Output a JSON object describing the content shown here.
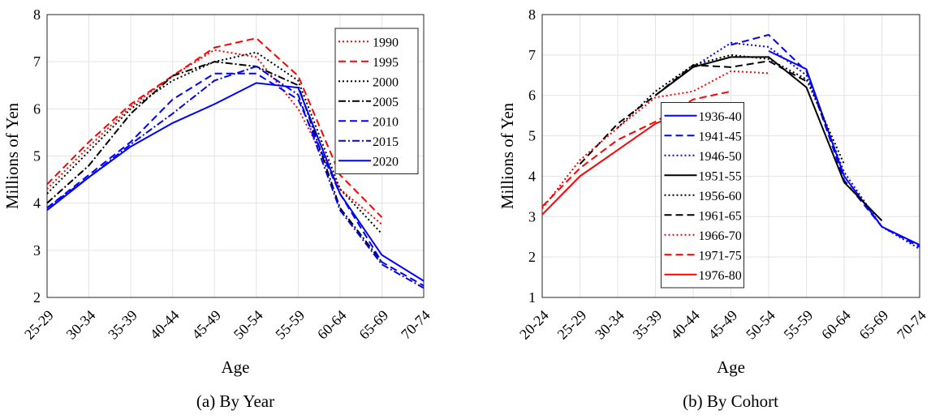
{
  "chart_data": [
    {
      "type": "line",
      "caption": "(a) By Year",
      "xlabel": "Age",
      "ylabel": "Millions of Yen",
      "categories": [
        "25-29",
        "30-34",
        "35-39",
        "40-44",
        "45-49",
        "50-54",
        "55-59",
        "60-64",
        "65-69",
        "70-74"
      ],
      "ylim": [
        2,
        8
      ],
      "yticks": [
        2,
        3,
        4,
        5,
        6,
        7,
        8
      ],
      "grid": true,
      "legend": "top-right",
      "series": [
        {
          "name": "1990",
          "color": "#ff0000",
          "dash": "dotted",
          "values": [
            4.3,
            5.2,
            6.05,
            6.7,
            7.25,
            7.1,
            6.0,
            4.3,
            3.55,
            null
          ]
        },
        {
          "name": "1995",
          "color": "#ff0000",
          "dash": "dashed",
          "values": [
            4.4,
            5.3,
            6.1,
            6.7,
            7.3,
            7.5,
            6.7,
            4.6,
            3.7,
            null
          ]
        },
        {
          "name": "2000",
          "color": "#000000",
          "dash": "dotted",
          "values": [
            4.2,
            5.1,
            6.0,
            6.6,
            7.0,
            7.2,
            6.6,
            4.3,
            3.35,
            null
          ]
        },
        {
          "name": "2005",
          "color": "#000000",
          "dash": "dashdot",
          "values": [
            4.0,
            4.8,
            5.9,
            6.7,
            7.0,
            6.9,
            6.5,
            3.9,
            2.75,
            null
          ]
        },
        {
          "name": "2010",
          "color": "#0000ff",
          "dash": "dashed",
          "values": [
            3.9,
            4.6,
            5.3,
            6.2,
            6.75,
            6.75,
            6.2,
            4.2,
            2.75,
            2.25
          ]
        },
        {
          "name": "2015",
          "color": "#0000ff",
          "dash": "dashdot",
          "values": [
            3.9,
            4.55,
            5.25,
            5.9,
            6.6,
            6.9,
            6.3,
            3.85,
            2.7,
            2.2
          ]
        },
        {
          "name": "2020",
          "color": "#0000ff",
          "dash": "solid",
          "values": [
            3.85,
            4.55,
            5.2,
            5.7,
            6.1,
            6.55,
            6.45,
            4.2,
            2.9,
            2.35
          ]
        }
      ]
    },
    {
      "type": "line",
      "caption": "(b) By Cohort",
      "xlabel": "Age",
      "ylabel": "Millions of Yen",
      "categories": [
        "20-24",
        "25-29",
        "30-34",
        "35-39",
        "40-44",
        "45-49",
        "50-54",
        "55-59",
        "60-64",
        "65-69",
        "70-74"
      ],
      "ylim": [
        1,
        8
      ],
      "yticks": [
        1,
        2,
        3,
        4,
        5,
        6,
        7,
        8
      ],
      "grid": true,
      "legend": "bottom-center",
      "series": [
        {
          "name": "1936-40",
          "color": "#0000ff",
          "dash": "solid",
          "values": [
            null,
            null,
            null,
            null,
            null,
            null,
            7.1,
            6.65,
            4.0,
            2.75,
            2.3
          ]
        },
        {
          "name": "1941-45",
          "color": "#0000ff",
          "dash": "dashed",
          "values": [
            null,
            null,
            null,
            null,
            null,
            7.25,
            7.5,
            6.6,
            3.9,
            2.75,
            2.25
          ]
        },
        {
          "name": "1946-50",
          "color": "#0000ff",
          "dash": "dotted",
          "values": [
            null,
            null,
            null,
            null,
            6.7,
            7.3,
            7.2,
            6.5,
            4.1,
            2.75,
            2.2
          ]
        },
        {
          "name": "1951-55",
          "color": "#000000",
          "dash": "solid",
          "values": [
            null,
            null,
            null,
            6.0,
            6.7,
            6.95,
            6.95,
            6.2,
            3.85,
            2.9,
            null
          ]
        },
        {
          "name": "1956-60",
          "color": "#000000",
          "dash": "dotted",
          "values": [
            null,
            null,
            5.2,
            6.1,
            6.75,
            7.0,
            6.9,
            6.4,
            4.3,
            null,
            null
          ]
        },
        {
          "name": "1961-65",
          "color": "#000000",
          "dash": "dashed",
          "values": [
            null,
            4.3,
            5.3,
            6.0,
            6.75,
            6.7,
            6.85,
            6.35,
            null,
            null,
            null
          ]
        },
        {
          "name": "1966-70",
          "color": "#ff0000",
          "dash": "dotted",
          "values": [
            3.2,
            4.4,
            5.2,
            5.95,
            6.1,
            6.6,
            6.55,
            null,
            null,
            null,
            null
          ]
        },
        {
          "name": "1971-75",
          "color": "#ff0000",
          "dash": "dashed",
          "values": [
            3.25,
            4.2,
            4.9,
            5.35,
            5.9,
            6.1,
            null,
            null,
            null,
            null,
            null
          ]
        },
        {
          "name": "1976-80",
          "color": "#ff0000",
          "dash": "solid",
          "values": [
            3.05,
            4.0,
            4.65,
            5.3,
            5.7,
            null,
            null,
            null,
            null,
            null,
            null
          ]
        }
      ]
    }
  ]
}
